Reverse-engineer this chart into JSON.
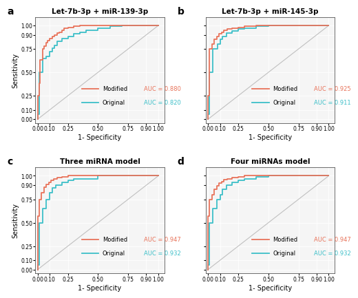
{
  "panels": [
    {
      "label": "a",
      "title": "Let-7b-3p + miR-139-3p",
      "modified_auc": "0.880",
      "original_auc": "0.820",
      "modified_roc": {
        "fpr": [
          0.0,
          0.0,
          0.01,
          0.01,
          0.02,
          0.02,
          0.04,
          0.04,
          0.05,
          0.05,
          0.07,
          0.07,
          0.08,
          0.08,
          0.1,
          0.1,
          0.12,
          0.12,
          0.14,
          0.14,
          0.16,
          0.16,
          0.18,
          0.18,
          0.2,
          0.2,
          0.22,
          0.22,
          0.25,
          0.25,
          0.3,
          0.3,
          0.35,
          0.35,
          0.4,
          0.4,
          0.5,
          0.5,
          0.6,
          0.6,
          0.7,
          0.7,
          0.8,
          0.8,
          1.0
        ],
        "tpr": [
          0.0,
          0.25,
          0.25,
          0.38,
          0.38,
          0.63,
          0.63,
          0.75,
          0.75,
          0.78,
          0.78,
          0.82,
          0.82,
          0.84,
          0.84,
          0.86,
          0.86,
          0.88,
          0.88,
          0.9,
          0.9,
          0.92,
          0.92,
          0.93,
          0.93,
          0.95,
          0.95,
          0.97,
          0.97,
          0.98,
          0.98,
          0.99,
          0.99,
          1.0,
          1.0,
          1.0,
          1.0,
          1.0,
          1.0,
          1.0,
          1.0,
          1.0,
          1.0,
          1.0,
          1.0
        ]
      },
      "original_roc": {
        "fpr": [
          0.0,
          0.0,
          0.01,
          0.01,
          0.04,
          0.04,
          0.07,
          0.07,
          0.1,
          0.1,
          0.12,
          0.12,
          0.14,
          0.14,
          0.16,
          0.16,
          0.2,
          0.2,
          0.25,
          0.25,
          0.3,
          0.3,
          0.35,
          0.35,
          0.4,
          0.4,
          0.5,
          0.5,
          0.6,
          0.6,
          0.7,
          0.7,
          1.0
        ],
        "tpr": [
          0.0,
          0.05,
          0.05,
          0.5,
          0.5,
          0.65,
          0.65,
          0.67,
          0.67,
          0.72,
          0.72,
          0.76,
          0.76,
          0.79,
          0.79,
          0.83,
          0.83,
          0.86,
          0.86,
          0.88,
          0.88,
          0.91,
          0.91,
          0.93,
          0.93,
          0.95,
          0.95,
          0.97,
          0.97,
          0.99,
          0.99,
          1.0,
          1.0
        ]
      }
    },
    {
      "label": "b",
      "title": "Let-7b-3p + miR-145-3p",
      "modified_auc": "0.925",
      "original_auc": "0.911",
      "modified_roc": {
        "fpr": [
          0.0,
          0.0,
          0.01,
          0.01,
          0.03,
          0.03,
          0.05,
          0.05,
          0.07,
          0.07,
          0.09,
          0.09,
          0.11,
          0.11,
          0.13,
          0.13,
          0.16,
          0.16,
          0.2,
          0.2,
          0.25,
          0.25,
          0.3,
          0.3,
          0.4,
          0.4,
          0.5,
          0.5,
          0.6,
          0.6,
          1.0
        ],
        "tpr": [
          0.0,
          0.25,
          0.25,
          0.75,
          0.75,
          0.8,
          0.8,
          0.85,
          0.85,
          0.88,
          0.88,
          0.91,
          0.91,
          0.93,
          0.93,
          0.95,
          0.95,
          0.96,
          0.96,
          0.97,
          0.97,
          0.98,
          0.98,
          0.99,
          0.99,
          1.0,
          1.0,
          1.0,
          1.0,
          1.0,
          1.0
        ]
      },
      "original_roc": {
        "fpr": [
          0.0,
          0.0,
          0.01,
          0.01,
          0.04,
          0.04,
          0.08,
          0.08,
          0.1,
          0.1,
          0.12,
          0.12,
          0.15,
          0.15,
          0.2,
          0.2,
          0.25,
          0.25,
          0.3,
          0.3,
          0.4,
          0.4,
          0.5,
          0.5,
          0.6,
          0.6,
          1.0
        ],
        "tpr": [
          0.0,
          0.05,
          0.05,
          0.5,
          0.5,
          0.75,
          0.75,
          0.8,
          0.8,
          0.85,
          0.85,
          0.88,
          0.88,
          0.92,
          0.92,
          0.94,
          0.94,
          0.96,
          0.96,
          0.97,
          0.97,
          0.99,
          0.99,
          1.0,
          1.0,
          1.0,
          1.0
        ]
      }
    },
    {
      "label": "c",
      "title": "Three miRNA model",
      "modified_auc": "0.947",
      "original_auc": "0.932",
      "modified_roc": {
        "fpr": [
          0.0,
          0.0,
          0.01,
          0.01,
          0.03,
          0.03,
          0.05,
          0.05,
          0.07,
          0.07,
          0.09,
          0.09,
          0.11,
          0.11,
          0.13,
          0.13,
          0.16,
          0.16,
          0.2,
          0.2,
          0.25,
          0.25,
          0.3,
          0.3,
          0.5,
          0.5,
          0.6,
          0.6,
          1.0
        ],
        "tpr": [
          0.0,
          0.57,
          0.57,
          0.75,
          0.75,
          0.82,
          0.82,
          0.88,
          0.88,
          0.91,
          0.91,
          0.93,
          0.93,
          0.95,
          0.95,
          0.97,
          0.97,
          0.98,
          0.98,
          0.99,
          0.99,
          1.0,
          1.0,
          1.0,
          1.0,
          1.0,
          1.0,
          1.0,
          1.0
        ]
      },
      "original_roc": {
        "fpr": [
          0.0,
          0.0,
          0.01,
          0.01,
          0.04,
          0.04,
          0.07,
          0.07,
          0.1,
          0.1,
          0.12,
          0.12,
          0.15,
          0.15,
          0.2,
          0.2,
          0.25,
          0.25,
          0.3,
          0.3,
          0.5,
          0.5,
          0.6,
          0.6,
          1.0
        ],
        "tpr": [
          0.0,
          0.05,
          0.05,
          0.5,
          0.5,
          0.65,
          0.65,
          0.75,
          0.75,
          0.82,
          0.82,
          0.87,
          0.87,
          0.9,
          0.9,
          0.93,
          0.93,
          0.95,
          0.95,
          0.97,
          0.97,
          1.0,
          1.0,
          1.0,
          1.0
        ]
      }
    },
    {
      "label": "d",
      "title": "Four miRNAs model",
      "modified_auc": "0.947",
      "original_auc": "0.932",
      "modified_roc": {
        "fpr": [
          0.0,
          0.0,
          0.01,
          0.01,
          0.03,
          0.03,
          0.05,
          0.05,
          0.07,
          0.07,
          0.09,
          0.09,
          0.11,
          0.11,
          0.13,
          0.13,
          0.16,
          0.16,
          0.2,
          0.2,
          0.25,
          0.25,
          0.3,
          0.3,
          0.4,
          0.4,
          0.5,
          0.5,
          1.0
        ],
        "tpr": [
          0.0,
          0.57,
          0.57,
          0.75,
          0.75,
          0.8,
          0.8,
          0.86,
          0.86,
          0.89,
          0.89,
          0.92,
          0.92,
          0.94,
          0.94,
          0.96,
          0.96,
          0.97,
          0.97,
          0.98,
          0.98,
          0.99,
          0.99,
          1.0,
          1.0,
          1.0,
          1.0,
          1.0,
          1.0
        ]
      },
      "original_roc": {
        "fpr": [
          0.0,
          0.0,
          0.01,
          0.01,
          0.04,
          0.04,
          0.07,
          0.07,
          0.1,
          0.1,
          0.12,
          0.12,
          0.15,
          0.15,
          0.2,
          0.2,
          0.25,
          0.25,
          0.3,
          0.3,
          0.4,
          0.4,
          0.5,
          0.5,
          1.0
        ],
        "tpr": [
          0.0,
          0.05,
          0.05,
          0.5,
          0.5,
          0.65,
          0.65,
          0.75,
          0.75,
          0.8,
          0.8,
          0.86,
          0.86,
          0.9,
          0.9,
          0.93,
          0.93,
          0.95,
          0.95,
          0.97,
          0.97,
          0.99,
          0.99,
          1.0,
          1.0
        ]
      }
    }
  ],
  "color_modified": "#E8735A",
  "color_original": "#3DBFC8",
  "color_diagonal": "#C0C0C0",
  "plot_bg_color": "#F5F5F5",
  "background_color": "#FFFFFF",
  "grid_color": "#FFFFFF",
  "xticks": [
    0.0,
    0.1,
    0.25,
    0.5,
    0.75,
    0.9,
    1.0
  ],
  "yticks": [
    0.0,
    0.1,
    0.25,
    0.5,
    0.75,
    0.9,
    1.0
  ],
  "xlabel": "1- Specificity",
  "ylabel": "Sensitivity",
  "xlim": [
    -0.02,
    1.05
  ],
  "ylim": [
    -0.04,
    1.09
  ]
}
